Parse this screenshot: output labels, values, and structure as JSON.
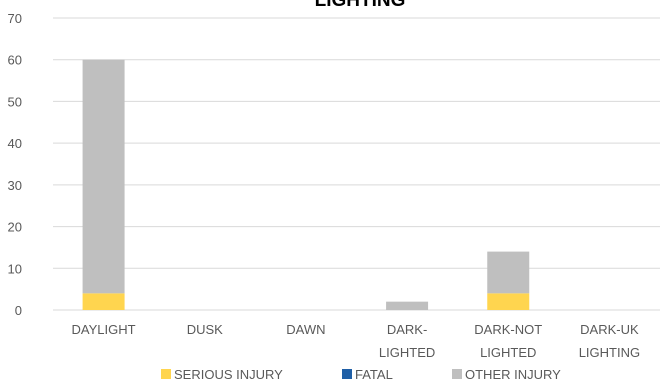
{
  "chart_data": {
    "type": "bar",
    "stacked": true,
    "title": "LIGHTING",
    "categories": [
      "DAYLIGHT",
      "DUSK",
      "DAWN",
      "DARK-LIGHTED",
      "DARK-NOT LIGHTED",
      "DARK-UK LIGHTING"
    ],
    "category_lines": [
      [
        "DAYLIGHT"
      ],
      [
        "DUSK"
      ],
      [
        "DAWN"
      ],
      [
        "DARK-",
        "LIGHTED"
      ],
      [
        "DARK-NOT",
        "LIGHTED"
      ],
      [
        "DARK-UK",
        "LIGHTING"
      ]
    ],
    "series": [
      {
        "name": "SERIOUS INJURY",
        "color": "#ffd54f",
        "values": [
          4,
          0,
          0,
          0,
          4,
          0
        ]
      },
      {
        "name": "FATAL",
        "color": "#1f5fa6",
        "values": [
          0,
          0,
          0,
          0,
          0,
          0
        ]
      },
      {
        "name": "OTHER INJURY",
        "color": "#bfbfbf",
        "values": [
          56,
          0,
          0,
          2,
          10,
          0
        ]
      }
    ],
    "ylim": [
      0,
      70
    ],
    "yticks": [
      0,
      10,
      20,
      30,
      40,
      50,
      60,
      70
    ],
    "grid": true,
    "legend": "bottom"
  }
}
